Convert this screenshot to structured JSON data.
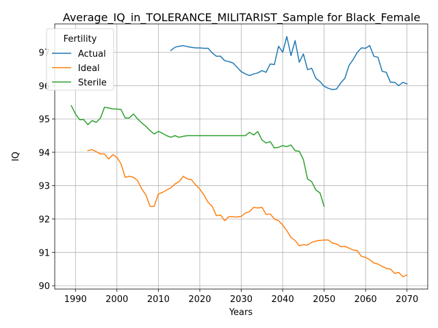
{
  "chart_data": {
    "type": "line",
    "title": "Average_IQ_in_TOLERANCE_MILITARIST_Sample for Black_Female",
    "xlabel": "Years",
    "ylabel": "IQ",
    "xlim": [
      1985,
      2075
    ],
    "ylim": [
      89.9,
      97.85
    ],
    "xticks": [
      1990,
      2000,
      2010,
      2020,
      2030,
      2040,
      2050,
      2060,
      2070
    ],
    "yticks": [
      90,
      91,
      92,
      93,
      94,
      95,
      96,
      97
    ],
    "grid": true,
    "legend": {
      "title": "Fertility",
      "placement": "top-left"
    },
    "series": [
      {
        "name": "Actual",
        "color": "#1f77b4",
        "x": [
          2013,
          2014,
          2015,
          2016,
          2017,
          2018,
          2019,
          2020,
          2021,
          2022,
          2023,
          2024,
          2025,
          2026,
          2027,
          2028,
          2029,
          2030,
          2031,
          2032,
          2033,
          2034,
          2035,
          2036,
          2037,
          2038,
          2039,
          2040,
          2041,
          2042,
          2043,
          2044,
          2045,
          2046,
          2047,
          2048,
          2049,
          2050,
          2051,
          2052,
          2053,
          2054,
          2055,
          2056,
          2057,
          2058,
          2059,
          2060,
          2061,
          2062,
          2063,
          2064,
          2065,
          2066,
          2067,
          2068,
          2069,
          2070
        ],
        "y": [
          97.05,
          97.15,
          97.18,
          97.2,
          97.17,
          97.15,
          97.13,
          97.13,
          97.12,
          97.12,
          96.98,
          96.88,
          96.88,
          96.75,
          96.72,
          96.68,
          96.55,
          96.42,
          96.35,
          96.3,
          96.35,
          96.38,
          96.45,
          96.4,
          96.65,
          96.63,
          97.18,
          97.0,
          97.47,
          96.9,
          97.35,
          96.7,
          96.95,
          96.48,
          96.52,
          96.22,
          96.12,
          95.98,
          95.92,
          95.88,
          95.9,
          96.08,
          96.22,
          96.6,
          96.78,
          97.0,
          97.13,
          97.12,
          97.2,
          96.88,
          96.85,
          96.43,
          96.4,
          96.1,
          96.1,
          96.0,
          96.1,
          96.05
        ]
      },
      {
        "name": "Ideal",
        "color": "#ff7f0e",
        "x": [
          1993,
          1994,
          1995,
          1996,
          1997,
          1998,
          1999,
          2000,
          2001,
          2002,
          2003,
          2004,
          2005,
          2006,
          2007,
          2008,
          2009,
          2010,
          2011,
          2012,
          2013,
          2014,
          2015,
          2016,
          2017,
          2018,
          2019,
          2020,
          2021,
          2022,
          2023,
          2024,
          2025,
          2026,
          2027,
          2028,
          2029,
          2030,
          2031,
          2032,
          2033,
          2034,
          2035,
          2036,
          2037,
          2038,
          2039,
          2040,
          2041,
          2042,
          2043,
          2044,
          2045,
          2046,
          2047,
          2048,
          2049,
          2050,
          2051,
          2052,
          2053,
          2054,
          2055,
          2056,
          2057,
          2058,
          2059,
          2060,
          2061,
          2062,
          2063,
          2064,
          2065,
          2066,
          2067,
          2068,
          2069,
          2070
        ],
        "y": [
          94.05,
          94.08,
          94.02,
          93.95,
          93.95,
          93.8,
          93.93,
          93.85,
          93.65,
          93.25,
          93.28,
          93.25,
          93.15,
          92.9,
          92.72,
          92.38,
          92.38,
          92.75,
          92.8,
          92.87,
          92.93,
          93.05,
          93.12,
          93.28,
          93.2,
          93.18,
          93.02,
          92.9,
          92.72,
          92.5,
          92.38,
          92.1,
          92.12,
          91.95,
          92.07,
          92.07,
          92.06,
          92.08,
          92.18,
          92.22,
          92.35,
          92.33,
          92.35,
          92.14,
          92.15,
          92.0,
          91.95,
          91.82,
          91.65,
          91.45,
          91.35,
          91.2,
          91.23,
          91.22,
          91.3,
          91.34,
          91.36,
          91.37,
          91.37,
          91.28,
          91.25,
          91.17,
          91.18,
          91.13,
          91.07,
          91.05,
          90.88,
          90.85,
          90.78,
          90.68,
          90.65,
          90.58,
          90.52,
          90.5,
          90.37,
          90.4,
          90.27,
          90.32
        ]
      },
      {
        "name": "Sterile",
        "color": "#2ca02c",
        "x": [
          1989,
          1990,
          1991,
          1992,
          1993,
          1994,
          1995,
          1996,
          1997,
          1998,
          1999,
          2000,
          2001,
          2002,
          2003,
          2004,
          2005,
          2006,
          2007,
          2008,
          2009,
          2010,
          2011,
          2012,
          2013,
          2014,
          2015,
          2016,
          2017,
          2018,
          2019,
          2020,
          2021,
          2022,
          2023,
          2024,
          2025,
          2026,
          2027,
          2028,
          2029,
          2030,
          2031,
          2032,
          2033,
          2034,
          2035,
          2036,
          2037,
          2038,
          2039,
          2040,
          2041,
          2042,
          2043,
          2044,
          2045,
          2046,
          2047,
          2048,
          2049,
          2050
        ],
        "y": [
          95.4,
          95.15,
          94.98,
          94.98,
          94.83,
          94.95,
          94.9,
          95.02,
          95.35,
          95.33,
          95.3,
          95.3,
          95.28,
          95.03,
          95.03,
          95.15,
          95.0,
          94.88,
          94.78,
          94.65,
          94.55,
          94.63,
          94.57,
          94.5,
          94.45,
          94.5,
          94.45,
          94.48,
          94.5,
          94.5,
          94.5,
          94.5,
          94.5,
          94.5,
          94.5,
          94.5,
          94.5,
          94.5,
          94.5,
          94.5,
          94.5,
          94.5,
          94.5,
          94.6,
          94.52,
          94.62,
          94.37,
          94.28,
          94.32,
          94.13,
          94.15,
          94.2,
          94.17,
          94.22,
          94.05,
          94.03,
          93.78,
          93.2,
          93.12,
          92.87,
          92.78,
          92.38
        ]
      }
    ]
  }
}
